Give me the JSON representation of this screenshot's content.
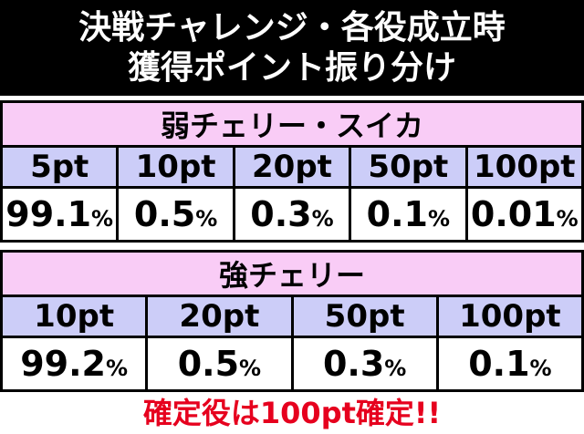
{
  "header": {
    "title_lines": [
      "決戦チャレンジ・各役成立時",
      "獲得ポイント振り分け"
    ]
  },
  "tables": [
    {
      "title": "弱チェリー・スイカ",
      "columns": [
        "5pt",
        "10pt",
        "20pt",
        "50pt",
        "100pt"
      ],
      "values": [
        "99.1%",
        "0.5%",
        "0.3%",
        "0.1%",
        "0.01%"
      ]
    },
    {
      "title": "強チェリー",
      "columns": [
        "10pt",
        "20pt",
        "50pt",
        "100pt"
      ],
      "values": [
        "99.2%",
        "0.5%",
        "0.3%",
        "0.1%"
      ]
    }
  ],
  "footer": "確定役は100pt確定!!"
}
